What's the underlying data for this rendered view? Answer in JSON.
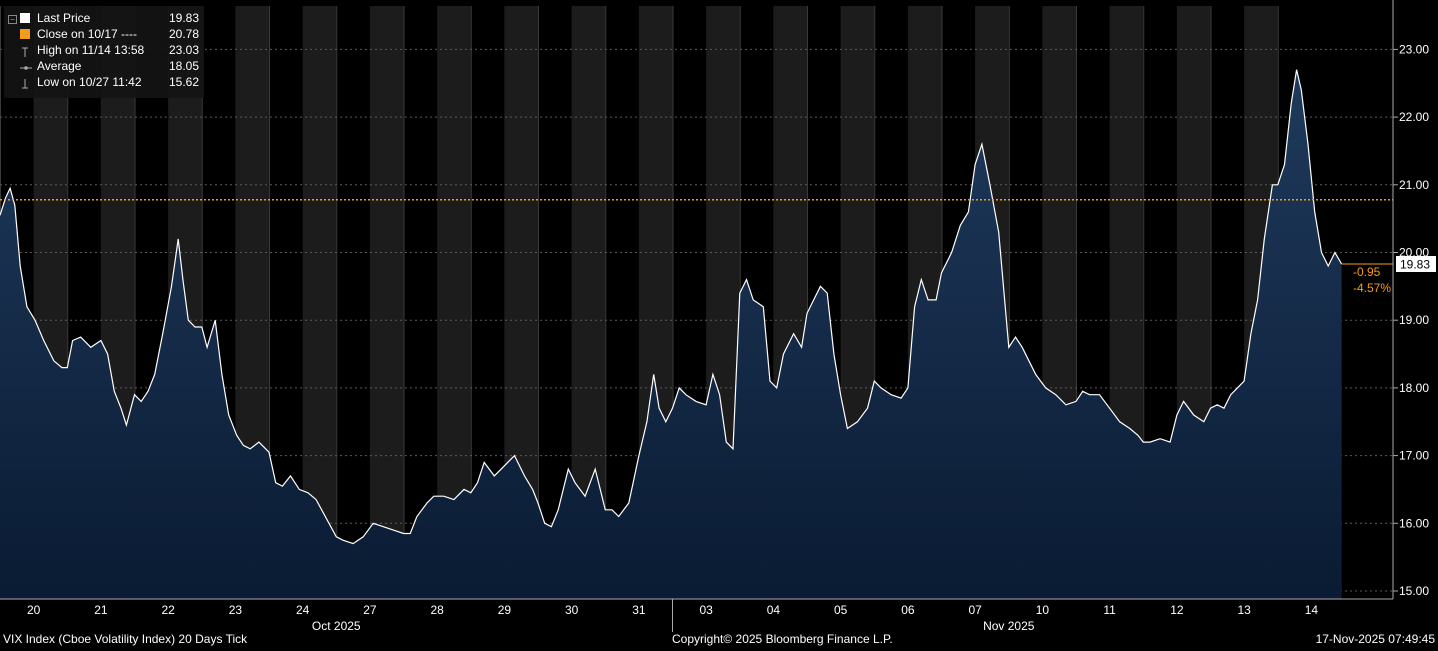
{
  "legend": {
    "items": [
      {
        "label": "Last Price",
        "value": "19.83",
        "symbol": "white-square"
      },
      {
        "label": "Close on 10/17 ----",
        "value": "20.78",
        "symbol": "orange-square"
      },
      {
        "label": "High on 11/14 13:58",
        "value": "23.03",
        "symbol": "high-marker"
      },
      {
        "label": "Average",
        "value": "18.05",
        "symbol": "average-marker"
      },
      {
        "label": "Low on 10/27 11:42",
        "value": "15.62",
        "symbol": "low-marker"
      }
    ]
  },
  "footer": {
    "left": "VIX Index (Cboe Volatility Index) 20 Days Tick",
    "center": "Copyright© 2025 Bloomberg Finance L.P.",
    "right": "17-Nov-2025 07:49:45"
  },
  "colors": {
    "background": "#000000",
    "session_shade": "#1c1c1c",
    "area_fill_top": "#1f3a5c",
    "area_fill_bottom": "#0a1b33",
    "price_line": "#ffffff",
    "close_line": "#f39c1c",
    "change_text": "#f39c1c"
  },
  "chart_data": {
    "type": "area",
    "title": "VIX Index (Cboe Volatility Index) 20 Days Tick",
    "days": [
      "20",
      "21",
      "22",
      "23",
      "24",
      "27",
      "28",
      "29",
      "30",
      "31",
      "03",
      "04",
      "05",
      "06",
      "07",
      "10",
      "11",
      "12",
      "13",
      "14"
    ],
    "months": [
      {
        "label": "Oct 2025",
        "start_day": 0,
        "end_day": 9
      },
      {
        "label": "Nov 2025",
        "start_day": 10,
        "end_day": 19
      }
    ],
    "y_ticks": [
      "15.00",
      "16.00",
      "17.00",
      "18.00",
      "19.00",
      "20.00",
      "21.00",
      "22.00",
      "23.00"
    ],
    "ylim": [
      15,
      23.6
    ],
    "x_axis": "session index (each trading day = 1.0; 0.0 = 10/20 regular session open)",
    "series": [
      {
        "points": [
          [
            0.0,
            20.55
          ],
          [
            0.08,
            20.8
          ],
          [
            0.15,
            20.95
          ],
          [
            0.22,
            20.7
          ],
          [
            0.3,
            19.8
          ],
          [
            0.4,
            19.2
          ],
          [
            0.52,
            19.0
          ],
          [
            0.65,
            18.7
          ],
          [
            0.8,
            18.4
          ],
          [
            0.92,
            18.3
          ],
          [
            1.0,
            18.3
          ],
          [
            1.08,
            18.7
          ],
          [
            1.2,
            18.75
          ],
          [
            1.35,
            18.6
          ],
          [
            1.5,
            18.7
          ],
          [
            1.6,
            18.5
          ],
          [
            1.7,
            17.95
          ],
          [
            1.8,
            17.7
          ],
          [
            1.88,
            17.45
          ],
          [
            2.0,
            17.9
          ],
          [
            2.1,
            17.8
          ],
          [
            2.2,
            17.95
          ],
          [
            2.3,
            18.2
          ],
          [
            2.42,
            18.8
          ],
          [
            2.55,
            19.5
          ],
          [
            2.65,
            20.2
          ],
          [
            2.72,
            19.6
          ],
          [
            2.8,
            19.0
          ],
          [
            2.9,
            18.9
          ],
          [
            3.0,
            18.9
          ],
          [
            3.08,
            18.6
          ],
          [
            3.2,
            19.0
          ],
          [
            3.3,
            18.2
          ],
          [
            3.4,
            17.6
          ],
          [
            3.52,
            17.3
          ],
          [
            3.62,
            17.15
          ],
          [
            3.72,
            17.1
          ],
          [
            3.85,
            17.2
          ],
          [
            4.0,
            17.05
          ],
          [
            4.1,
            16.6
          ],
          [
            4.2,
            16.55
          ],
          [
            4.32,
            16.7
          ],
          [
            4.45,
            16.5
          ],
          [
            4.58,
            16.45
          ],
          [
            4.7,
            16.35
          ],
          [
            5.0,
            15.8
          ],
          [
            5.1,
            15.75
          ],
          [
            5.25,
            15.7
          ],
          [
            5.4,
            15.8
          ],
          [
            5.55,
            16.0
          ],
          [
            5.7,
            15.95
          ],
          [
            5.85,
            15.9
          ],
          [
            6.0,
            15.85
          ],
          [
            6.1,
            15.85
          ],
          [
            6.2,
            16.1
          ],
          [
            6.35,
            16.3
          ],
          [
            6.45,
            16.4
          ],
          [
            6.6,
            16.4
          ],
          [
            6.75,
            16.35
          ],
          [
            6.9,
            16.5
          ],
          [
            7.0,
            16.45
          ],
          [
            7.1,
            16.6
          ],
          [
            7.2,
            16.9
          ],
          [
            7.35,
            16.7
          ],
          [
            7.5,
            16.85
          ],
          [
            7.65,
            17.0
          ],
          [
            7.8,
            16.7
          ],
          [
            7.92,
            16.5
          ],
          [
            8.0,
            16.3
          ],
          [
            8.1,
            16.0
          ],
          [
            8.2,
            15.95
          ],
          [
            8.3,
            16.2
          ],
          [
            8.45,
            16.8
          ],
          [
            8.55,
            16.6
          ],
          [
            8.7,
            16.4
          ],
          [
            8.85,
            16.8
          ],
          [
            9.0,
            16.2
          ],
          [
            9.1,
            16.2
          ],
          [
            9.2,
            16.1
          ],
          [
            9.35,
            16.3
          ],
          [
            9.5,
            17.0
          ],
          [
            9.62,
            17.5
          ],
          [
            9.72,
            18.2
          ],
          [
            9.8,
            17.7
          ],
          [
            9.9,
            17.5
          ],
          [
            10.0,
            17.7
          ],
          [
            10.1,
            18.0
          ],
          [
            10.2,
            17.9
          ],
          [
            10.35,
            17.8
          ],
          [
            10.5,
            17.75
          ],
          [
            10.6,
            18.2
          ],
          [
            10.7,
            17.9
          ],
          [
            10.8,
            17.2
          ],
          [
            10.9,
            17.1
          ],
          [
            11.0,
            19.4
          ],
          [
            11.1,
            19.6
          ],
          [
            11.2,
            19.3
          ],
          [
            11.35,
            19.2
          ],
          [
            11.45,
            18.1
          ],
          [
            11.55,
            18.0
          ],
          [
            11.65,
            18.5
          ],
          [
            11.8,
            18.8
          ],
          [
            11.92,
            18.6
          ],
          [
            12.0,
            19.1
          ],
          [
            12.1,
            19.3
          ],
          [
            12.2,
            19.5
          ],
          [
            12.3,
            19.4
          ],
          [
            12.4,
            18.5
          ],
          [
            12.5,
            17.9
          ],
          [
            12.6,
            17.4
          ],
          [
            12.75,
            17.5
          ],
          [
            12.9,
            17.7
          ],
          [
            13.0,
            18.1
          ],
          [
            13.1,
            18.0
          ],
          [
            13.25,
            17.9
          ],
          [
            13.4,
            17.85
          ],
          [
            13.5,
            18.0
          ],
          [
            13.6,
            19.2
          ],
          [
            13.7,
            19.6
          ],
          [
            13.8,
            19.3
          ],
          [
            13.92,
            19.3
          ],
          [
            14.0,
            19.7
          ],
          [
            14.15,
            20.0
          ],
          [
            14.28,
            20.4
          ],
          [
            14.4,
            20.6
          ],
          [
            14.5,
            21.3
          ],
          [
            14.6,
            21.6
          ],
          [
            14.72,
            21.0
          ],
          [
            14.85,
            20.3
          ],
          [
            15.0,
            18.6
          ],
          [
            15.1,
            18.75
          ],
          [
            15.2,
            18.6
          ],
          [
            15.3,
            18.4
          ],
          [
            15.4,
            18.2
          ],
          [
            15.55,
            18.0
          ],
          [
            15.7,
            17.9
          ],
          [
            15.85,
            17.75
          ],
          [
            16.0,
            17.8
          ],
          [
            16.1,
            17.95
          ],
          [
            16.2,
            17.9
          ],
          [
            16.35,
            17.9
          ],
          [
            16.5,
            17.7
          ],
          [
            16.65,
            17.5
          ],
          [
            16.8,
            17.4
          ],
          [
            16.92,
            17.3
          ],
          [
            17.0,
            17.2
          ],
          [
            17.1,
            17.2
          ],
          [
            17.25,
            17.25
          ],
          [
            17.4,
            17.2
          ],
          [
            17.5,
            17.6
          ],
          [
            17.6,
            17.8
          ],
          [
            17.75,
            17.6
          ],
          [
            17.9,
            17.5
          ],
          [
            18.0,
            17.7
          ],
          [
            18.1,
            17.75
          ],
          [
            18.2,
            17.7
          ],
          [
            18.3,
            17.9
          ],
          [
            18.4,
            18.0
          ],
          [
            18.5,
            18.1
          ],
          [
            18.6,
            18.8
          ],
          [
            18.7,
            19.3
          ],
          [
            18.8,
            20.2
          ],
          [
            18.92,
            21.0
          ],
          [
            19.0,
            21.0
          ],
          [
            19.1,
            21.3
          ],
          [
            19.2,
            22.2
          ],
          [
            19.28,
            22.7
          ],
          [
            19.35,
            22.4
          ],
          [
            19.45,
            21.6
          ],
          [
            19.55,
            20.6
          ],
          [
            19.65,
            20.0
          ],
          [
            19.75,
            19.8
          ],
          [
            19.85,
            20.0
          ],
          [
            19.95,
            19.83
          ]
        ]
      }
    ],
    "reference_lines": [
      {
        "name": "Close on 10/17",
        "value": 20.78
      }
    ],
    "last_price_label": "19.83",
    "change_labels": [
      "-0.95",
      "-4.57%"
    ],
    "grid": true,
    "session_shading": true,
    "legend_position": "top-left"
  }
}
